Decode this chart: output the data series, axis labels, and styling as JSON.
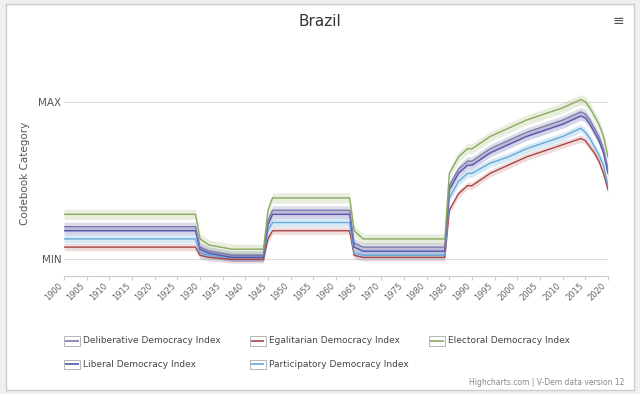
{
  "title": "Brazil",
  "ylabel": "Codebook Category",
  "footnote": "Highcharts.com | V-Dem data version 12",
  "bg_color": "#ffffff",
  "border_color": "#cccccc",
  "series_colors": {
    "electoral": "#8aaa5e",
    "deliberative": "#7b7aaa",
    "liberal": "#5555aa",
    "egalitarian": "#aa4444",
    "participatory": "#66aadd"
  },
  "series_labels": {
    "deliberative": "Deliberative Democracy Index",
    "liberal": "Liberal Democracy Index",
    "egalitarian": "Egalitarian Democracy Index",
    "participatory": "Participatory Democracy Index",
    "electoral": "Electoral Democracy Index"
  },
  "band_width": {
    "electoral": 0.025,
    "deliberative": 0.022,
    "liberal": 0.02,
    "egalitarian": 0.018,
    "participatory": 0.02
  },
  "band_alpha": {
    "electoral": 0.2,
    "deliberative": 0.25,
    "liberal": 0.25,
    "egalitarian": 0.18,
    "participatory": 0.25
  },
  "ylim": [
    0.0,
    1.0
  ],
  "ytick_min_pos": 0.08,
  "ytick_max_pos": 0.85
}
